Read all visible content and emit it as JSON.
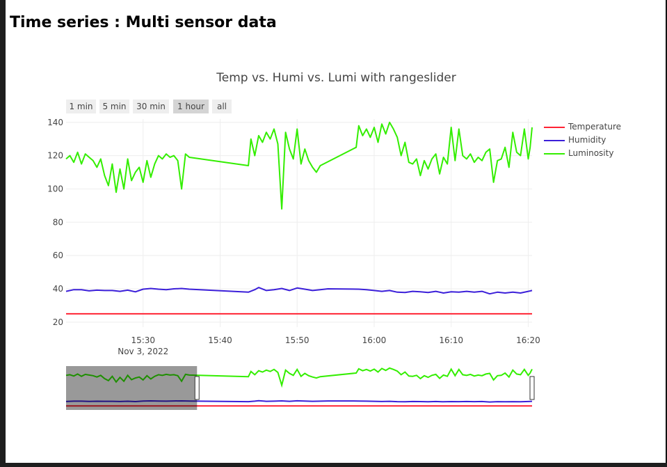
{
  "page": {
    "title": "Time series : Multi sensor data"
  },
  "chart_data": {
    "type": "line",
    "title": "Temp vs. Humi vs. Lumi with rangeslider",
    "xlabel": "",
    "ylabel": "",
    "x_axis": {
      "type": "date",
      "range": [
        "2022-11-03 15:20:00",
        "2022-11-03 16:20:30"
      ],
      "ticks": [
        "15:30",
        "15:40",
        "15:50",
        "16:00",
        "16:10",
        "16:20"
      ],
      "date_label": "Nov 3, 2022"
    },
    "y_axis": {
      "range": [
        17,
        142
      ],
      "ticks": [
        20,
        40,
        60,
        80,
        100,
        120,
        140
      ]
    },
    "grid": true,
    "legend_position": "top-right",
    "range_buttons": [
      {
        "label": "1 min",
        "active": false
      },
      {
        "label": "5 min",
        "active": false
      },
      {
        "label": "30 min",
        "active": false
      },
      {
        "label": "1 hour",
        "active": true
      },
      {
        "label": "all",
        "active": false
      }
    ],
    "series": [
      {
        "name": "Temperature",
        "color": "#ff2233",
        "x": [
          "15:20:00",
          "16:20:30"
        ],
        "y": [
          25,
          25
        ]
      },
      {
        "name": "Humidity",
        "color": "#3b1fd9",
        "x": [
          "15:20:00",
          "15:21:00",
          "15:22:00",
          "15:23:00",
          "15:24:00",
          "15:25:00",
          "15:26:00",
          "15:27:00",
          "15:28:00",
          "15:29:00",
          "15:30:00",
          "15:31:00",
          "15:32:00",
          "15:33:00",
          "15:34:00",
          "15:35:00",
          "15:36:00",
          "15:43:40",
          "15:44:30",
          "15:45:00",
          "15:46:00",
          "15:47:00",
          "15:48:00",
          "15:49:00",
          "15:50:00",
          "15:51:00",
          "15:52:00",
          "15:53:00",
          "15:54:00",
          "15:58:00",
          "15:59:00",
          "16:00:00",
          "16:01:00",
          "16:02:00",
          "16:03:00",
          "16:04:00",
          "16:05:00",
          "16:06:00",
          "16:07:00",
          "16:08:00",
          "16:09:00",
          "16:10:00",
          "16:11:00",
          "16:12:00",
          "16:13:00",
          "16:14:00",
          "16:15:00",
          "16:16:00",
          "16:17:00",
          "16:18:00",
          "16:19:00",
          "16:20:00",
          "16:20:30"
        ],
        "y": [
          38.5,
          39.5,
          39.5,
          38.8,
          39.2,
          39.0,
          39.0,
          38.5,
          39.2,
          38.2,
          39.8,
          40.2,
          39.8,
          39.5,
          40.0,
          40.2,
          39.8,
          38.0,
          39.5,
          40.8,
          39.0,
          39.5,
          40.2,
          39.0,
          40.5,
          39.8,
          39.0,
          39.5,
          40.0,
          39.8,
          39.5,
          39.0,
          38.5,
          39.0,
          38.0,
          37.8,
          38.5,
          38.2,
          37.8,
          38.5,
          37.5,
          38.2,
          38.0,
          38.5,
          38.0,
          38.5,
          37.0,
          38.0,
          37.5,
          38.0,
          37.5,
          38.5,
          39.0
        ]
      },
      {
        "name": "Luminosity",
        "color": "#33ee00",
        "x": [
          "15:20:00",
          "15:20:30",
          "15:21:00",
          "15:21:30",
          "15:22:00",
          "15:22:30",
          "15:23:00",
          "15:23:30",
          "15:24:00",
          "15:24:30",
          "15:25:00",
          "15:25:30",
          "15:26:00",
          "15:26:30",
          "15:27:00",
          "15:27:30",
          "15:28:00",
          "15:28:30",
          "15:29:00",
          "15:29:30",
          "15:30:00",
          "15:30:30",
          "15:31:00",
          "15:31:30",
          "15:32:00",
          "15:32:30",
          "15:33:00",
          "15:33:30",
          "15:34:00",
          "15:34:30",
          "15:35:00",
          "15:35:30",
          "15:36:00",
          "15:43:40",
          "15:44:00",
          "15:44:30",
          "15:45:00",
          "15:45:30",
          "15:46:00",
          "15:46:30",
          "15:47:00",
          "15:47:30",
          "15:48:00",
          "15:48:30",
          "15:49:00",
          "15:49:30",
          "15:50:00",
          "15:50:30",
          "15:51:00",
          "15:51:30",
          "15:52:00",
          "15:52:30",
          "15:53:00",
          "15:57:40",
          "15:58:00",
          "15:58:30",
          "15:59:00",
          "15:59:30",
          "16:00:00",
          "16:00:30",
          "16:01:00",
          "16:01:30",
          "16:02:00",
          "16:02:30",
          "16:03:00",
          "16:03:30",
          "16:04:00",
          "16:04:30",
          "16:05:00",
          "16:05:30",
          "16:06:00",
          "16:06:30",
          "16:07:00",
          "16:07:30",
          "16:08:00",
          "16:08:30",
          "16:09:00",
          "16:09:30",
          "16:10:00",
          "16:10:30",
          "16:11:00",
          "16:11:30",
          "16:12:00",
          "16:12:30",
          "16:13:00",
          "16:13:30",
          "16:14:00",
          "16:14:30",
          "16:15:00",
          "16:15:30",
          "16:16:00",
          "16:16:30",
          "16:17:00",
          "16:17:30",
          "16:18:00",
          "16:18:30",
          "16:19:00",
          "16:19:30",
          "16:20:00",
          "16:20:15",
          "16:20:30"
        ],
        "y": [
          118,
          120,
          116,
          122,
          115,
          121,
          119,
          117,
          113,
          118,
          108,
          102,
          115,
          98,
          112,
          100,
          118,
          105,
          110,
          113,
          104,
          117,
          107,
          115,
          120,
          118,
          121,
          119,
          120,
          117,
          100,
          121,
          119,
          114,
          130,
          120,
          132,
          128,
          134,
          130,
          136,
          127,
          88,
          134,
          124,
          118,
          136,
          115,
          124,
          117,
          113,
          110,
          114,
          125,
          138,
          132,
          136,
          131,
          137,
          128,
          139,
          133,
          140,
          136,
          131,
          120,
          128,
          116,
          115,
          118,
          108,
          117,
          112,
          118,
          121,
          109,
          119,
          115,
          137,
          117,
          136,
          120,
          118,
          121,
          116,
          119,
          117,
          122,
          124,
          104,
          117,
          118,
          125,
          113,
          134,
          122,
          120,
          136,
          118,
          125,
          137
        ]
      }
    ],
    "rangeslider": {
      "selected_range": [
        "15:20:00",
        "15:37:00"
      ]
    }
  }
}
